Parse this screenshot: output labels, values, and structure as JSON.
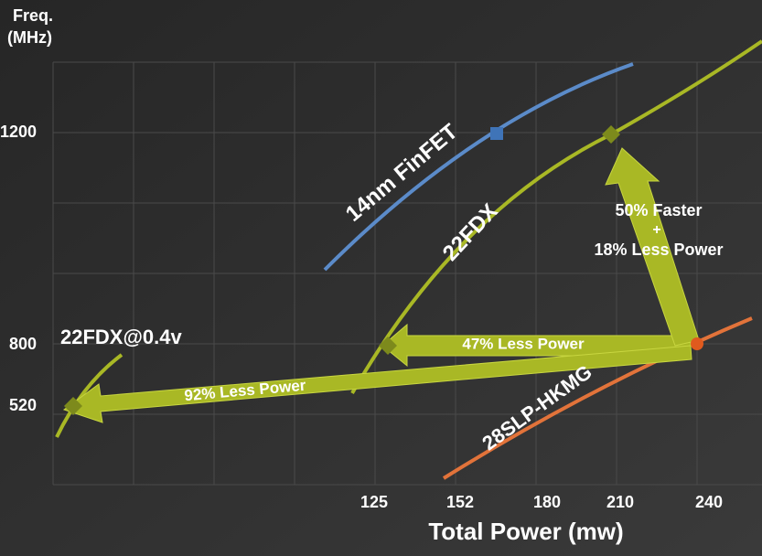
{
  "axes": {
    "y_title_line1": "Freq.",
    "y_title_line2": "(MHz)",
    "x_title": "Total Power (mw)",
    "y_tick_labels": [
      "1200",
      "800",
      "520"
    ],
    "x_tick_labels": [
      "125",
      "152",
      "180",
      "210",
      "240"
    ]
  },
  "curves": {
    "finfet": "14nm FinFET",
    "fdx": "22FDX",
    "fdx_low": "22FDX@0.4v",
    "hkmg": "28SLP-HKMG"
  },
  "arrows": {
    "up_line1": "50% Faster",
    "up_line2": "+",
    "up_line3": "18% Less Power",
    "mid": "47% Less Power",
    "long": "92% Less Power"
  }
}
